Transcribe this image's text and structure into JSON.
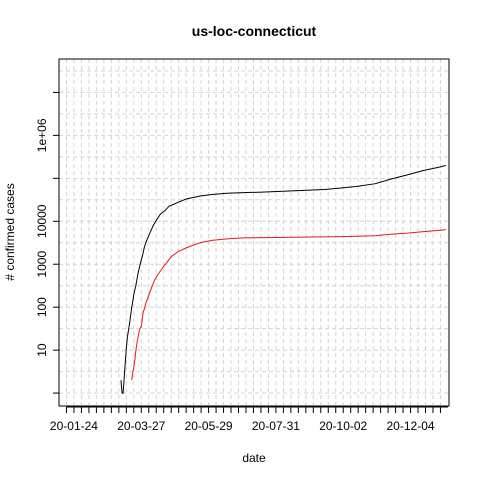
{
  "chart_data": {
    "type": "line",
    "title": "us-loc-connecticut",
    "xlabel": "date",
    "ylabel": "# confirmed cases",
    "y_scale": "log10",
    "ylim": [
      0.5,
      60000000
    ],
    "xlim": [
      "2020-01-10",
      "2021-01-09"
    ],
    "grid": true,
    "x_tick_labels": [
      "20-01-24",
      "20-03-27",
      "20-05-29",
      "20-07-31",
      "20-10-02",
      "20-12-04"
    ],
    "x_tick_dates": [
      "2020-01-24",
      "2020-03-27",
      "2020-05-29",
      "2020-07-31",
      "2020-10-02",
      "2020-12-04"
    ],
    "y_ticks": [
      10,
      100,
      1000,
      10000,
      1000000
    ],
    "y_tick_labels": [
      "10",
      "100",
      "1000",
      "10000",
      "1e+06"
    ],
    "series": [
      {
        "color": "#000000",
        "points": [
          [
            "2020-03-08",
            2
          ],
          [
            "2020-03-09",
            1
          ],
          [
            "2020-03-10",
            1
          ],
          [
            "2020-03-12",
            5
          ],
          [
            "2020-03-13",
            11
          ],
          [
            "2020-03-14",
            20
          ],
          [
            "2020-03-16",
            41
          ],
          [
            "2020-03-18",
            96
          ],
          [
            "2020-03-20",
            194
          ],
          [
            "2020-03-22",
            327
          ],
          [
            "2020-03-24",
            618
          ],
          [
            "2020-03-26",
            1012
          ],
          [
            "2020-03-28",
            1524
          ],
          [
            "2020-03-30",
            2571
          ],
          [
            "2020-04-01",
            3557
          ],
          [
            "2020-04-04",
            5276
          ],
          [
            "2020-04-07",
            7781
          ],
          [
            "2020-04-10",
            10538
          ],
          [
            "2020-04-14",
            14755
          ],
          [
            "2020-04-18",
            17550
          ],
          [
            "2020-04-22",
            22469
          ],
          [
            "2020-04-26",
            24582
          ],
          [
            "2020-05-01",
            28000
          ],
          [
            "2020-05-08",
            33000
          ],
          [
            "2020-05-15",
            36000
          ],
          [
            "2020-05-22",
            39000
          ],
          [
            "2020-06-01",
            42000
          ],
          [
            "2020-06-15",
            45000
          ],
          [
            "2020-07-01",
            46500
          ],
          [
            "2020-07-15",
            47500
          ],
          [
            "2020-08-01",
            49500
          ],
          [
            "2020-08-15",
            51000
          ],
          [
            "2020-09-01",
            53000
          ],
          [
            "2020-09-15",
            55000
          ],
          [
            "2020-10-01",
            60000
          ],
          [
            "2020-10-15",
            65000
          ],
          [
            "2020-11-01",
            75000
          ],
          [
            "2020-11-15",
            95000
          ],
          [
            "2020-12-01",
            120000
          ],
          [
            "2020-12-15",
            150000
          ],
          [
            "2021-01-01",
            185000
          ],
          [
            "2021-01-06",
            200000
          ]
        ]
      },
      {
        "color": "#e31a1c",
        "points": [
          [
            "2020-03-18",
            2
          ],
          [
            "2020-03-19",
            3
          ],
          [
            "2020-03-20",
            4
          ],
          [
            "2020-03-21",
            6
          ],
          [
            "2020-03-22",
            10
          ],
          [
            "2020-03-23",
            15
          ],
          [
            "2020-03-24",
            20
          ],
          [
            "2020-03-25",
            27
          ],
          [
            "2020-03-26",
            33
          ],
          [
            "2020-03-27",
            35
          ],
          [
            "2020-03-28",
            55
          ],
          [
            "2020-03-29",
            80
          ],
          [
            "2020-03-30",
            90
          ],
          [
            "2020-03-31",
            120
          ],
          [
            "2020-04-02",
            160
          ],
          [
            "2020-04-04",
            220
          ],
          [
            "2020-04-06",
            300
          ],
          [
            "2020-04-08",
            400
          ],
          [
            "2020-04-10",
            500
          ],
          [
            "2020-04-12",
            600
          ],
          [
            "2020-04-14",
            700
          ],
          [
            "2020-04-17",
            900
          ],
          [
            "2020-04-20",
            1100
          ],
          [
            "2020-04-24",
            1500
          ],
          [
            "2020-05-01",
            2000
          ],
          [
            "2020-05-08",
            2400
          ],
          [
            "2020-05-15",
            2800
          ],
          [
            "2020-05-22",
            3200
          ],
          [
            "2020-06-01",
            3600
          ],
          [
            "2020-06-15",
            3900
          ],
          [
            "2020-07-01",
            4100
          ],
          [
            "2020-08-01",
            4200
          ],
          [
            "2020-09-01",
            4300
          ],
          [
            "2020-10-01",
            4400
          ],
          [
            "2020-11-01",
            4600
          ],
          [
            "2020-11-15",
            5000
          ],
          [
            "2020-12-01",
            5300
          ],
          [
            "2020-12-15",
            5700
          ],
          [
            "2021-01-01",
            6200
          ],
          [
            "2021-01-06",
            6400
          ]
        ]
      }
    ]
  }
}
